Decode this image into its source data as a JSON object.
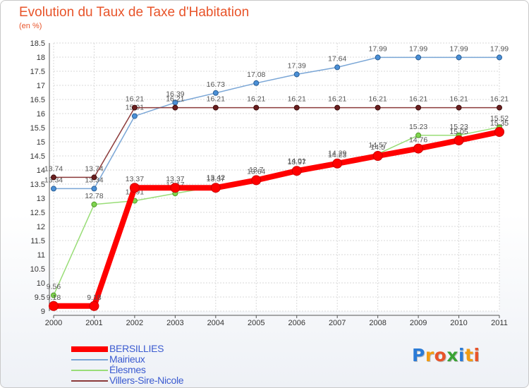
{
  "header": {
    "title": "Evolution du Taux de Taxe d'Habitation",
    "unit": "(en %)"
  },
  "logo": {
    "text": "Proxiti",
    "letters": [
      "P",
      "r",
      "o",
      "x",
      "i",
      "t",
      "i"
    ],
    "colors": [
      "#2b7bd6",
      "#f39c12",
      "#e8542a",
      "#3aa335",
      "#2b7bd6",
      "#f39c12",
      "#e8542a"
    ]
  },
  "chart_data": {
    "type": "line",
    "title": "Evolution du Taux de Taxe d'Habitation",
    "ylabel": "(en %)",
    "xlabel": "",
    "x": [
      "2000",
      "2001",
      "2002",
      "2003",
      "2004",
      "2005",
      "2006",
      "2007",
      "2008",
      "2009",
      "2010",
      "2011"
    ],
    "ylim": [
      9,
      18.5
    ],
    "yticks": [
      "9",
      "9.5",
      "10",
      "10.5",
      "11",
      "11.5",
      "12",
      "12.5",
      "13",
      "13.5",
      "14",
      "14.5",
      "15",
      "15.5",
      "16",
      "16.5",
      "17",
      "17.5",
      "18",
      "18.5"
    ],
    "grid": true,
    "legend_position": "bottom-left",
    "series": [
      {
        "name": "BERSILLIES",
        "color": "#ff0000",
        "values": [
          9.18,
          9.18,
          13.37,
          13.37,
          13.37,
          13.64,
          13.97,
          14.23,
          14.5,
          14.76,
          15.05,
          15.35
        ]
      },
      {
        "name": "Mairieux",
        "color": "#7aa6d6",
        "values": [
          13.34,
          13.34,
          15.91,
          16.39,
          16.73,
          17.08,
          17.39,
          17.64,
          17.99,
          17.99,
          17.99,
          17.99
        ]
      },
      {
        "name": "Élesmes",
        "color": "#99dd77",
        "values": [
          9.56,
          12.78,
          12.91,
          13.17,
          13.42,
          13.7,
          14.01,
          14.29,
          14.57,
          15.23,
          15.23,
          15.52
        ]
      },
      {
        "name": "Villers-Sire-Nicole",
        "color": "#8b3a3a",
        "values": [
          13.74,
          13.74,
          16.21,
          16.21,
          16.21,
          16.21,
          16.21,
          16.21,
          16.21,
          16.21,
          16.21,
          16.21
        ]
      }
    ]
  }
}
